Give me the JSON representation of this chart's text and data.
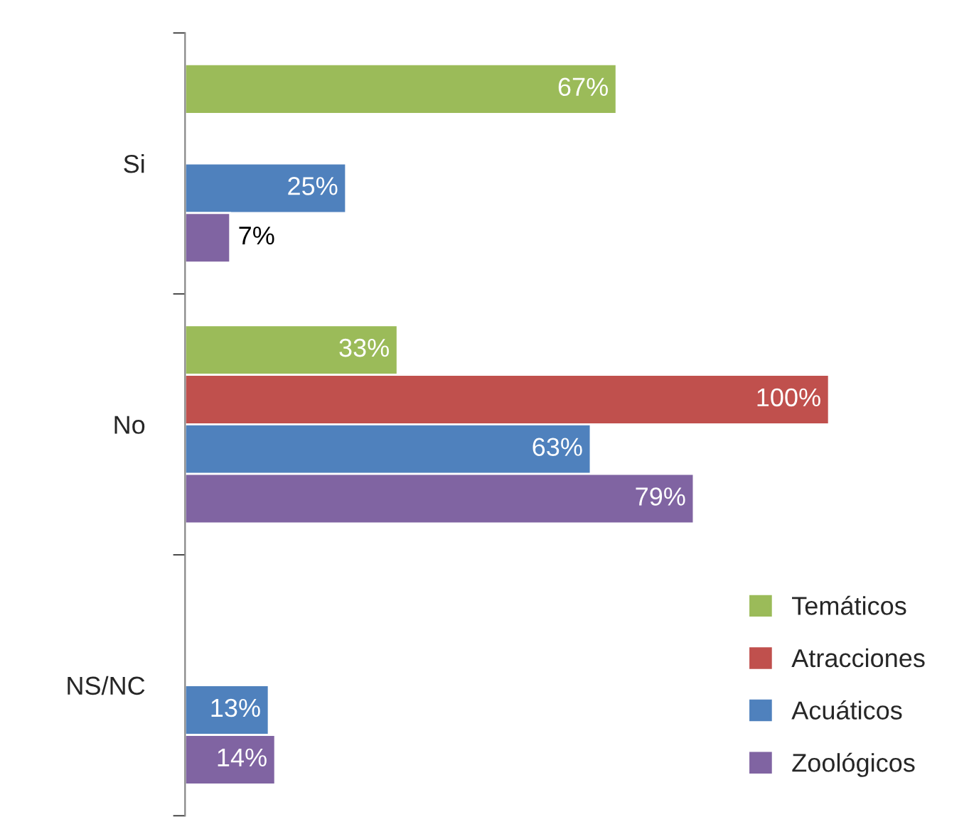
{
  "chart_data": {
    "type": "bar",
    "orientation": "horizontal",
    "categories": [
      "Si",
      "No",
      "NS/NC"
    ],
    "series": [
      {
        "name": "Temáticos",
        "color": "#9bbb59",
        "values": [
          67,
          33,
          null
        ],
        "value_labels": [
          "67%",
          "33%",
          null
        ]
      },
      {
        "name": "Atracciones",
        "color": "#c0504d",
        "values": [
          null,
          100,
          null
        ],
        "value_labels": [
          null,
          "100%",
          null
        ]
      },
      {
        "name": "Acuáticos",
        "color": "#4f81bd",
        "values": [
          25,
          63,
          13
        ],
        "value_labels": [
          "25%",
          "63%",
          "13%"
        ]
      },
      {
        "name": "Zoológicos",
        "color": "#8064a2",
        "values": [
          7,
          79,
          14
        ],
        "value_labels": [
          "7%",
          "79%",
          "14%"
        ]
      }
    ],
    "legend": "bottom right",
    "grid": false,
    "tick_labels": "y"
  }
}
